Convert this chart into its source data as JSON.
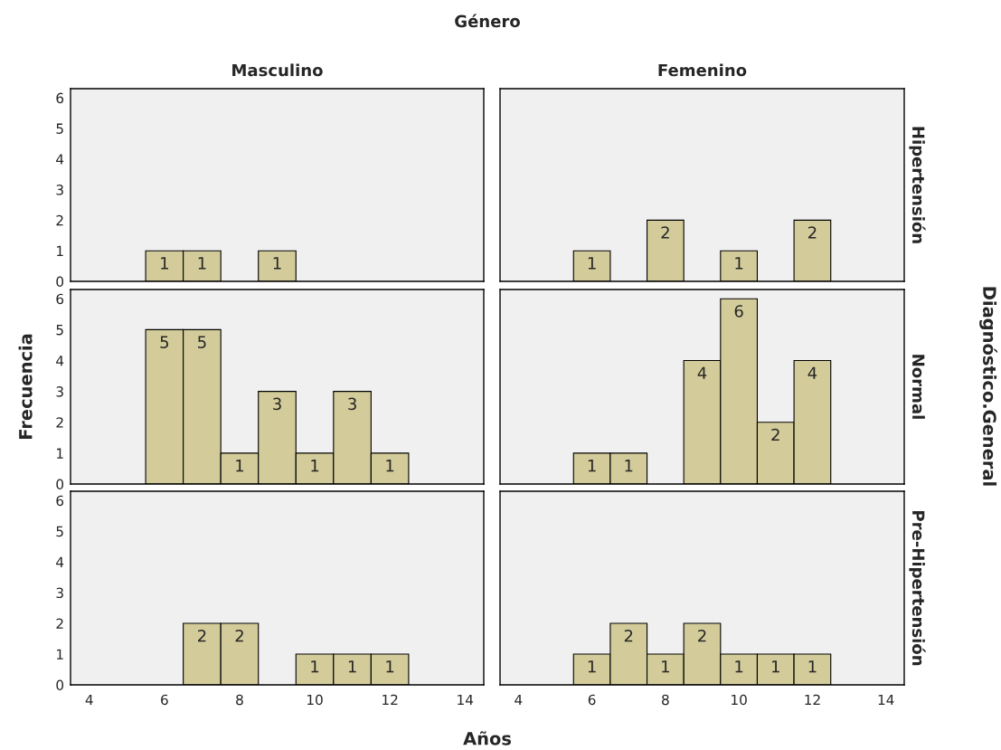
{
  "chart_data": [
    {
      "type": "histogram",
      "title": "Masculino",
      "annotations": [
        "Género"
      ],
      "bins": [
        5.5,
        6.5,
        7.5,
        8.5,
        9.5
      ],
      "values": [
        1,
        1,
        0,
        1
      ],
      "value_labels": [
        "1",
        "1",
        null,
        "1"
      ],
      "color": "#d3cc9a",
      "xlim": [
        3.5,
        14.5
      ],
      "xticks": [
        4,
        6,
        8,
        10,
        12,
        14
      ],
      "ylim": [
        0,
        6.3
      ],
      "yticks": [
        0,
        1,
        2,
        3,
        4,
        5,
        6
      ],
      "tick_labels": "y",
      "grid": false
    },
    {
      "type": "histogram",
      "title": "Femenino",
      "y2label": "Hipertensión",
      "bins": [
        5.5,
        6.5,
        7.5,
        8.5,
        9.5,
        10.5,
        11.5,
        12.5
      ],
      "values": [
        1,
        0,
        2,
        0,
        1,
        0,
        2
      ],
      "value_labels": [
        "1",
        null,
        "2",
        null,
        "1",
        null,
        "2"
      ],
      "color": "#d3cc9a",
      "xlim": [
        3.5,
        14.5
      ],
      "xticks": [
        4,
        6,
        8,
        10,
        12,
        14
      ],
      "ylim": [
        0,
        6.3
      ],
      "yticks": [
        0,
        1,
        2,
        3,
        4,
        5,
        6
      ],
      "tick_labels": false,
      "grid": false
    },
    {
      "type": "histogram",
      "ylabel": "Frecuencia",
      "bins": [
        5.5,
        6.5,
        7.5,
        8.5,
        9.5,
        10.5,
        11.5,
        12.5
      ],
      "values": [
        5,
        5,
        1,
        3,
        1,
        3,
        1
      ],
      "value_labels": [
        "5",
        "5",
        "1",
        "3",
        "1",
        "3",
        "1"
      ],
      "color": "#d3cc9a",
      "xlim": [
        3.5,
        14.5
      ],
      "xticks": [
        4,
        6,
        8,
        10,
        12,
        14
      ],
      "ylim": [
        0,
        6.3
      ],
      "yticks": [
        0,
        1,
        2,
        3,
        4,
        5,
        6
      ],
      "tick_labels": "y",
      "grid": false
    },
    {
      "type": "histogram",
      "y2label": "Normal",
      "annotations": [
        "Diagnóstico.General"
      ],
      "bins": [
        5.5,
        6.5,
        7.5,
        8.5,
        9.5,
        10.5,
        11.5,
        12.5
      ],
      "values": [
        1,
        1,
        0,
        4,
        6,
        2,
        4
      ],
      "value_labels": [
        "1",
        "1",
        null,
        "4",
        "6",
        "2",
        "4"
      ],
      "color": "#d3cc9a",
      "xlim": [
        3.5,
        14.5
      ],
      "xticks": [
        4,
        6,
        8,
        10,
        12,
        14
      ],
      "ylim": [
        0,
        6.3
      ],
      "yticks": [
        0,
        1,
        2,
        3,
        4,
        5,
        6
      ],
      "tick_labels": false,
      "grid": false
    },
    {
      "type": "histogram",
      "annotations": [
        "Años"
      ],
      "bins": [
        6.5,
        7.5,
        8.5,
        9.5,
        10.5,
        11.5,
        12.5
      ],
      "values": [
        2,
        2,
        0,
        1,
        1,
        1
      ],
      "value_labels": [
        "2",
        "2",
        null,
        "1",
        "1",
        "1"
      ],
      "color": "#d3cc9a",
      "xlim": [
        3.5,
        14.5
      ],
      "xticks": [
        4,
        6,
        8,
        10,
        12,
        14
      ],
      "ylim": [
        0,
        6.3
      ],
      "yticks": [
        0,
        1,
        2,
        3,
        4,
        5,
        6
      ],
      "grid": false
    },
    {
      "type": "histogram",
      "y2label": "Pre-Hipertensión",
      "bins": [
        5.5,
        6.5,
        7.5,
        8.5,
        9.5,
        10.5,
        11.5,
        12.5
      ],
      "values": [
        1,
        2,
        1,
        2,
        1,
        1,
        1
      ],
      "value_labels": [
        "1",
        "2",
        "1",
        "2",
        "1",
        "1",
        "1"
      ],
      "color": "#d3cc9a",
      "xlim": [
        3.5,
        14.5
      ],
      "xticks": [
        4,
        6,
        8,
        10,
        12,
        14
      ],
      "ylim": [
        0,
        6.3
      ],
      "yticks": [
        0,
        1,
        2,
        3,
        4,
        5,
        6
      ],
      "tick_labels": "x",
      "grid": false
    }
  ]
}
